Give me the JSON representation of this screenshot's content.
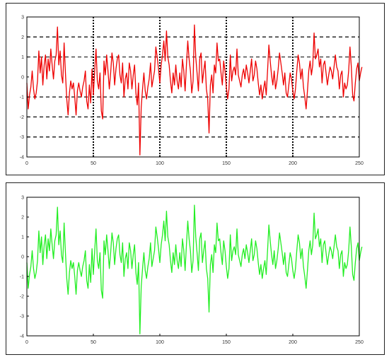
{
  "chart_data": [
    {
      "type": "line",
      "title": "",
      "xlabel": "",
      "ylabel": "",
      "xlim": [
        0,
        250
      ],
      "ylim": [
        -4,
        3
      ],
      "xticks": [
        0,
        50,
        100,
        150,
        200,
        250
      ],
      "yticks": [
        -4,
        -3,
        -2,
        -1,
        0,
        1,
        2,
        3
      ],
      "grid": "dashed horizontal, dotted vertical",
      "series": [
        {
          "color": "#ee0000",
          "x_step": 1,
          "values": [
            -0.3,
            -1.6,
            -0.9,
            -0.5,
            0.3,
            -0.6,
            -1.1,
            -0.8,
            -0.2,
            1.3,
            0.2,
            1.0,
            -0.4,
            0.6,
            1.1,
            -0.1,
            0.9,
            0.3,
            1.4,
            0.6,
            -0.1,
            0.8,
            1.1,
            2.5,
            0.6,
            1.3,
            0.1,
            -0.3,
            1.7,
            0.2,
            -1.1,
            -1.9,
            -0.8,
            -0.2,
            -0.6,
            -0.3,
            -1.0,
            -1.9,
            -0.7,
            -0.3,
            -0.7,
            -1.0,
            -0.5,
            -0.2,
            0.3,
            -1.2,
            -1.6,
            -0.4,
            -1.3,
            0.4,
            -0.9,
            0.3,
            1.4,
            -0.2,
            -0.6,
            0.2,
            -1.7,
            -2.1,
            0.8,
            0.1,
            1.1,
            0.3,
            -0.6,
            0.2,
            1.2,
            0.7,
            -0.4,
            0.4,
            0.9,
            1.1,
            0.1,
            -0.3,
            0.7,
            -1.0,
            -0.1,
            0.2,
            -0.6,
            0.7,
            0.3,
            -0.6,
            0.1,
            0.6,
            -0.8,
            -1.4,
            -0.3,
            -3.9,
            -1.5,
            -0.6,
            0.2,
            -0.7,
            -1.1,
            -0.5,
            -0.1,
            0.7,
            -0.5,
            -0.1,
            0.3,
            1.5,
            1.0,
            0.4,
            -0.3,
            0.6,
            1.1,
            1.8,
            0.8,
            2.3,
            1.0,
            0.6,
            -0.2,
            -0.8,
            0.2,
            -0.4,
            0.6,
            -0.2,
            -0.6,
            0.2,
            -0.5,
            0.9,
            0.3,
            -0.7,
            0.6,
            1.8,
            0.9,
            0.3,
            -0.8,
            -0.2,
            2.6,
            1.0,
            0.2,
            -0.7,
            0.9,
            1.2,
            -0.3,
            0.3,
            0.8,
            -0.6,
            -1.1,
            -2.8,
            -0.4,
            0.1,
            -0.8,
            0.6,
            0.2,
            1.7,
            0.8,
            0.9,
            0.2,
            -0.4,
            0.8,
            0.3,
            -0.5,
            -1.1,
            -0.6,
            1.1,
            -0.2,
            0.3,
            0.5,
            0.1,
            1.4,
            0.1,
            -0.2,
            -0.5,
            0.1,
            0.4,
            -0.1,
            0.6,
            0.2,
            -0.3,
            0.3,
            0.9,
            -0.2,
            0.1,
            0.8,
            0.4,
            -0.3,
            -0.9,
            -0.4,
            -1.1,
            -0.6,
            -0.2,
            -0.9,
            0.3,
            1.6,
            0.8,
            0.1,
            -0.4,
            0.3,
            -0.6,
            -0.2,
            0.4,
            1.2,
            0.7,
            0.2,
            -0.4,
            0.2,
            -0.8,
            -1.0,
            -0.4,
            0.2,
            -0.1,
            -0.7,
            -1.1,
            -0.6,
            0.3,
            1.1,
            0.7,
            -0.1,
            0.4,
            -0.5,
            -1.0,
            -1.6,
            -0.7,
            0.3,
            0.8,
            0.1,
            0.6,
            2.2,
            0.9,
            1.1,
            1.4,
            0.5,
            0.9,
            -0.3,
            0.6,
            0.8,
            0.2,
            -0.4,
            0.1,
            0.5,
            0.3,
            -0.1,
            0.5,
            1.1,
            0.5,
            0.3,
            -0.6,
            0.1,
            0.3,
            -1.0,
            -0.3,
            -0.6,
            -0.4,
            0.3,
            1.5,
            0.5,
            -0.9,
            -1.2,
            -0.3,
            0.4,
            0.7,
            -0.2,
            0.2,
            0.5
          ]
        }
      ]
    },
    {
      "type": "line",
      "title": "",
      "xlabel": "",
      "ylabel": "",
      "xlim": [
        0,
        250
      ],
      "ylim": [
        -4,
        3
      ],
      "xticks": [
        0,
        50,
        100,
        150,
        200,
        250
      ],
      "yticks": [
        -4,
        -3,
        -2,
        -1,
        0,
        1,
        2,
        3
      ],
      "grid": "none",
      "series": [
        {
          "color": "#22ee22",
          "x_step": 1,
          "values": [
            -0.3,
            -1.6,
            -0.9,
            -0.5,
            0.3,
            -0.6,
            -1.1,
            -0.8,
            -0.2,
            1.3,
            0.2,
            1.0,
            -0.4,
            0.6,
            1.1,
            -0.1,
            0.9,
            0.3,
            1.4,
            0.6,
            -0.1,
            0.8,
            1.1,
            2.5,
            0.6,
            1.3,
            0.1,
            -0.3,
            1.7,
            0.2,
            -1.1,
            -1.9,
            -0.8,
            -0.2,
            -0.6,
            -0.3,
            -1.0,
            -1.9,
            -0.7,
            -0.3,
            -0.7,
            -1.0,
            -0.5,
            -0.2,
            0.3,
            -1.2,
            -1.6,
            -0.4,
            -1.3,
            0.4,
            -0.9,
            0.3,
            1.4,
            -0.2,
            -0.6,
            0.2,
            -1.7,
            -2.1,
            0.8,
            0.1,
            1.1,
            0.3,
            -0.6,
            0.2,
            1.2,
            0.7,
            -0.4,
            0.4,
            0.9,
            1.1,
            0.1,
            -0.3,
            0.7,
            -1.0,
            -0.1,
            0.2,
            -0.6,
            0.7,
            0.3,
            -0.6,
            0.1,
            0.6,
            -0.8,
            -1.4,
            -0.3,
            -3.9,
            -1.5,
            -0.6,
            0.2,
            -0.7,
            -1.1,
            -0.5,
            -0.1,
            0.7,
            -0.5,
            -0.1,
            0.3,
            1.5,
            1.0,
            0.4,
            -0.3,
            0.6,
            1.1,
            1.8,
            0.8,
            2.3,
            1.0,
            0.6,
            -0.2,
            -0.8,
            0.2,
            -0.4,
            0.6,
            -0.2,
            -0.6,
            0.2,
            -0.5,
            0.9,
            0.3,
            -0.7,
            0.6,
            1.8,
            0.9,
            0.3,
            -0.8,
            -0.2,
            2.6,
            1.0,
            0.2,
            -0.7,
            0.9,
            1.2,
            -0.3,
            0.3,
            0.8,
            -0.6,
            -1.1,
            -2.8,
            -0.4,
            0.1,
            -0.8,
            0.6,
            0.2,
            1.7,
            0.8,
            0.9,
            0.2,
            -0.4,
            0.8,
            0.3,
            -0.5,
            -1.1,
            -0.6,
            1.1,
            -0.2,
            0.3,
            0.5,
            0.1,
            1.4,
            0.1,
            -0.2,
            -0.5,
            0.1,
            0.4,
            -0.1,
            0.6,
            0.2,
            -0.3,
            0.3,
            0.9,
            -0.2,
            0.1,
            0.8,
            0.4,
            -0.3,
            -0.9,
            -0.4,
            -1.1,
            -0.6,
            -0.2,
            -0.9,
            0.3,
            1.6,
            0.8,
            0.1,
            -0.4,
            0.3,
            -0.6,
            -0.2,
            0.4,
            1.2,
            0.7,
            0.2,
            -0.4,
            0.2,
            -0.8,
            -1.0,
            -0.4,
            0.2,
            -0.1,
            -0.7,
            -1.1,
            -0.6,
            0.3,
            1.1,
            0.7,
            -0.1,
            0.4,
            -0.5,
            -1.0,
            -1.6,
            -0.7,
            0.3,
            0.8,
            0.1,
            0.6,
            2.2,
            0.9,
            1.1,
            1.4,
            0.5,
            0.9,
            -0.3,
            0.6,
            0.8,
            0.2,
            -0.4,
            0.1,
            0.5,
            0.3,
            -0.1,
            0.5,
            1.1,
            0.5,
            0.3,
            -0.6,
            0.1,
            0.3,
            -1.0,
            -0.3,
            -0.6,
            -0.4,
            0.3,
            1.5,
            0.5,
            -0.9,
            -1.2,
            -0.3,
            0.4,
            0.7,
            -0.2,
            0.2,
            0.5
          ]
        }
      ]
    }
  ]
}
